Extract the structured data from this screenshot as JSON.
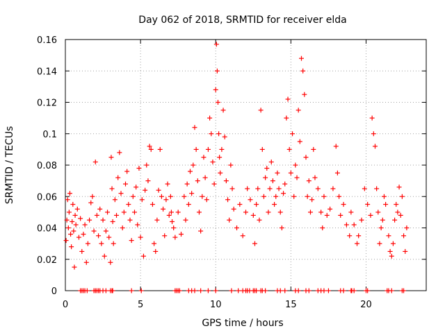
{
  "chart_data": {
    "type": "scatter",
    "title": "Day 062 of 2018, SRMTID for receiver elda",
    "xlabel": "GPS time / hours",
    "ylabel": "SRMTID / TECUs",
    "xlim": [
      0,
      24
    ],
    "ylim": [
      0,
      0.16
    ],
    "xticks": [
      0,
      5,
      10,
      15,
      20
    ],
    "xtick_labels": [
      "0",
      "5",
      "10",
      "15",
      "20"
    ],
    "yticks": [
      0,
      0.02,
      0.04,
      0.06,
      0.08,
      0.1,
      0.12,
      0.14,
      0.16
    ],
    "ytick_labels": [
      "0",
      "0.02",
      "0.04",
      "0.06",
      "0.08",
      "0.1",
      "0.12",
      "0.14",
      "0.16"
    ],
    "grid": true,
    "marker": "+",
    "marker_color": "#ff0000",
    "series": [
      {
        "name": "SRMTID",
        "points": [
          [
            0.05,
            0.032
          ],
          [
            0.1,
            0.045
          ],
          [
            0.15,
            0.058
          ],
          [
            0.2,
            0.04
          ],
          [
            0.25,
            0.05
          ],
          [
            0.3,
            0.062
          ],
          [
            0.35,
            0.036
          ],
          [
            0.4,
            0.028
          ],
          [
            0.45,
            0.044
          ],
          [
            0.5,
            0.055
          ],
          [
            0.55,
            0.038
          ],
          [
            0.6,
            0.015
          ],
          [
            0.65,
            0.048
          ],
          [
            0.7,
            0.042
          ],
          [
            0.8,
            0.052
          ],
          [
            0.9,
            0.034
          ],
          [
            1.0,
            0.046
          ],
          [
            1.1,
            0.025
          ],
          [
            1.2,
            0.036
          ],
          [
            1.3,
            0.042
          ],
          [
            1.4,
            0.018
          ],
          [
            1.5,
            0.03
          ],
          [
            1.6,
            0.045
          ],
          [
            1.7,
            0.056
          ],
          [
            1.8,
            0.06
          ],
          [
            1.9,
            0.038
          ],
          [
            2.0,
            0.082
          ],
          [
            2.1,
            0.048
          ],
          [
            2.2,
            0.035
          ],
          [
            2.3,
            0.052
          ],
          [
            2.4,
            0.03
          ],
          [
            2.5,
            0.045
          ],
          [
            2.6,
            0.022
          ],
          [
            2.7,
            0.038
          ],
          [
            2.8,
            0.05
          ],
          [
            2.9,
            0.034
          ],
          [
            3.0,
            0.018
          ],
          [
            3.05,
            0.085
          ],
          [
            3.1,
            0.065
          ],
          [
            3.15,
            0.044
          ],
          [
            3.2,
            0.03
          ],
          [
            3.3,
            0.058
          ],
          [
            3.4,
            0.048
          ],
          [
            3.5,
            0.072
          ],
          [
            3.6,
            0.088
          ],
          [
            3.7,
            0.062
          ],
          [
            3.8,
            0.04
          ],
          [
            3.9,
            0.05
          ],
          [
            4.0,
            0.068
          ],
          [
            4.1,
            0.076
          ],
          [
            4.2,
            0.055
          ],
          [
            4.3,
            0.045
          ],
          [
            4.4,
            0.032
          ],
          [
            4.5,
            0.06
          ],
          [
            4.6,
            0.05
          ],
          [
            4.7,
            0.066
          ],
          [
            4.8,
            0.042
          ],
          [
            4.9,
            0.078
          ],
          [
            5.0,
            0.034
          ],
          [
            5.1,
            0.058
          ],
          [
            5.2,
            0.022
          ],
          [
            5.3,
            0.064
          ],
          [
            5.4,
            0.08
          ],
          [
            5.5,
            0.07
          ],
          [
            5.6,
            0.092
          ],
          [
            5.7,
            0.09
          ],
          [
            5.8,
            0.055
          ],
          [
            5.9,
            0.03
          ],
          [
            6.0,
            0.025
          ],
          [
            6.1,
            0.045
          ],
          [
            6.2,
            0.064
          ],
          [
            6.3,
            0.09
          ],
          [
            6.4,
            0.06
          ],
          [
            6.5,
            0.052
          ],
          [
            6.6,
            0.035
          ],
          [
            6.7,
            0.058
          ],
          [
            6.8,
            0.068
          ],
          [
            6.9,
            0.048
          ],
          [
            7.0,
            0.06
          ],
          [
            7.05,
            0.05
          ],
          [
            7.1,
            0.044
          ],
          [
            7.2,
            0.04
          ],
          [
            7.3,
            0.034
          ],
          [
            7.5,
            0.05
          ],
          [
            7.7,
            0.036
          ],
          [
            7.9,
            0.06
          ],
          [
            8.0,
            0.045
          ],
          [
            8.1,
            0.068
          ],
          [
            8.2,
            0.055
          ],
          [
            8.3,
            0.076
          ],
          [
            8.4,
            0.062
          ],
          [
            8.5,
            0.08
          ],
          [
            8.6,
            0.104
          ],
          [
            8.7,
            0.09
          ],
          [
            8.8,
            0.07
          ],
          [
            8.9,
            0.05
          ],
          [
            9.0,
            0.038
          ],
          [
            9.1,
            0.06
          ],
          [
            9.2,
            0.085
          ],
          [
            9.3,
            0.072
          ],
          [
            9.4,
            0.058
          ],
          [
            9.5,
            0.09
          ],
          [
            9.6,
            0.11
          ],
          [
            9.7,
            0.1
          ],
          [
            9.8,
            0.082
          ],
          [
            9.9,
            0.068
          ],
          [
            10.0,
            0.128
          ],
          [
            10.05,
            0.157
          ],
          [
            10.1,
            0.14
          ],
          [
            10.15,
            0.12
          ],
          [
            10.2,
            0.1
          ],
          [
            10.25,
            0.085
          ],
          [
            10.3,
            0.075
          ],
          [
            10.4,
            0.09
          ],
          [
            10.5,
            0.115
          ],
          [
            10.6,
            0.098
          ],
          [
            10.7,
            0.07
          ],
          [
            10.8,
            0.058
          ],
          [
            10.9,
            0.045
          ],
          [
            11.0,
            0.08
          ],
          [
            11.1,
            0.065
          ],
          [
            11.2,
            0.052
          ],
          [
            11.4,
            0.04
          ],
          [
            11.6,
            0.055
          ],
          [
            11.8,
            0.035
          ],
          [
            12.0,
            0.05
          ],
          [
            12.1,
            0.065
          ],
          [
            12.3,
            0.058
          ],
          [
            12.5,
            0.048
          ],
          [
            12.6,
            0.03
          ],
          [
            12.7,
            0.055
          ],
          [
            12.8,
            0.065
          ],
          [
            12.9,
            0.045
          ],
          [
            13.0,
            0.115
          ],
          [
            13.1,
            0.09
          ],
          [
            13.2,
            0.06
          ],
          [
            13.3,
            0.072
          ],
          [
            13.4,
            0.078
          ],
          [
            13.5,
            0.05
          ],
          [
            13.6,
            0.065
          ],
          [
            13.7,
            0.082
          ],
          [
            13.8,
            0.07
          ],
          [
            13.9,
            0.055
          ],
          [
            14.0,
            0.06
          ],
          [
            14.1,
            0.075
          ],
          [
            14.2,
            0.065
          ],
          [
            14.3,
            0.05
          ],
          [
            14.4,
            0.04
          ],
          [
            14.5,
            0.062
          ],
          [
            14.6,
            0.068
          ],
          [
            14.7,
            0.11
          ],
          [
            14.8,
            0.122
          ],
          [
            14.9,
            0.09
          ],
          [
            15.0,
            0.075
          ],
          [
            15.1,
            0.1
          ],
          [
            15.2,
            0.06
          ],
          [
            15.3,
            0.08
          ],
          [
            15.4,
            0.072
          ],
          [
            15.5,
            0.115
          ],
          [
            15.6,
            0.095
          ],
          [
            15.7,
            0.148
          ],
          [
            15.8,
            0.14
          ],
          [
            15.9,
            0.125
          ],
          [
            16.0,
            0.085
          ],
          [
            16.1,
            0.06
          ],
          [
            16.2,
            0.07
          ],
          [
            16.3,
            0.05
          ],
          [
            16.4,
            0.058
          ],
          [
            16.5,
            0.09
          ],
          [
            16.6,
            0.072
          ],
          [
            16.8,
            0.065
          ],
          [
            17.0,
            0.05
          ],
          [
            17.1,
            0.04
          ],
          [
            17.2,
            0.06
          ],
          [
            17.4,
            0.048
          ],
          [
            17.6,
            0.052
          ],
          [
            17.8,
            0.065
          ],
          [
            18.0,
            0.092
          ],
          [
            18.1,
            0.075
          ],
          [
            18.2,
            0.06
          ],
          [
            18.3,
            0.048
          ],
          [
            18.5,
            0.055
          ],
          [
            18.7,
            0.042
          ],
          [
            18.9,
            0.035
          ],
          [
            19.0,
            0.05
          ],
          [
            19.2,
            0.042
          ],
          [
            19.4,
            0.03
          ],
          [
            19.5,
            0.035
          ],
          [
            19.7,
            0.045
          ],
          [
            19.9,
            0.065
          ],
          [
            20.1,
            0.055
          ],
          [
            20.3,
            0.048
          ],
          [
            20.4,
            0.11
          ],
          [
            20.5,
            0.1
          ],
          [
            20.6,
            0.092
          ],
          [
            20.7,
            0.065
          ],
          [
            20.8,
            0.05
          ],
          [
            20.9,
            0.03
          ],
          [
            21.0,
            0.04
          ],
          [
            21.1,
            0.045
          ],
          [
            21.2,
            0.06
          ],
          [
            21.3,
            0.055
          ],
          [
            21.5,
            0.035
          ],
          [
            21.6,
            0.025
          ],
          [
            21.7,
            0.022
          ],
          [
            21.8,
            0.03
          ],
          [
            21.9,
            0.045
          ],
          [
            22.0,
            0.055
          ],
          [
            22.1,
            0.05
          ],
          [
            22.2,
            0.066
          ],
          [
            22.3,
            0.048
          ],
          [
            22.4,
            0.06
          ],
          [
            22.5,
            0.035
          ],
          [
            22.6,
            0.025
          ],
          [
            22.7,
            0.04
          ]
        ]
      }
    ],
    "zero_values_x": [
      1.0,
      1.1,
      1.2,
      1.3,
      1.45,
      1.9,
      2.0,
      2.1,
      2.2,
      2.3,
      2.5,
      2.7,
      3.0,
      3.1,
      3.15,
      4.4,
      5.05,
      7.3,
      7.4,
      7.5,
      7.6,
      8.2,
      8.4,
      8.6,
      9.0,
      9.5,
      10.0,
      11.05,
      11.5,
      11.8,
      12.0,
      12.1,
      12.25,
      12.5,
      12.6,
      12.7,
      13.0,
      13.1,
      13.3,
      14.1,
      14.3,
      14.6,
      15.3,
      15.5,
      16.0,
      16.2,
      16.8,
      17.0,
      17.2,
      17.5,
      18.3,
      18.5,
      19.0,
      19.05,
      19.2,
      20.0,
      20.1,
      21.4,
      21.5,
      21.7,
      22.4,
      22.5
    ]
  }
}
